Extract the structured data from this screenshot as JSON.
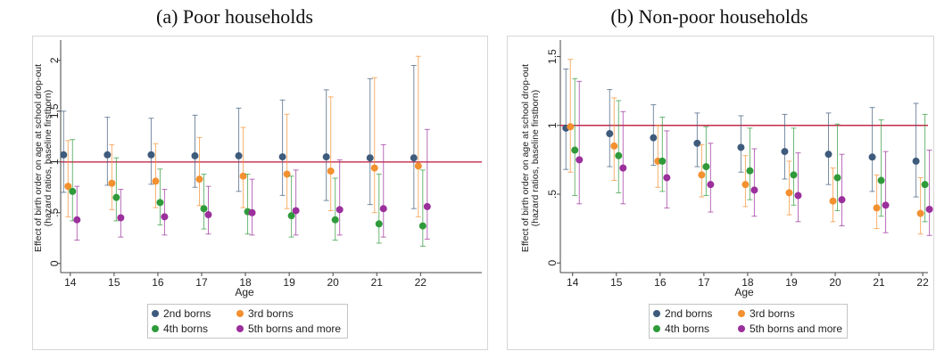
{
  "chart_data": [
    {
      "type": "scatter",
      "title": "(a) Poor households",
      "xlabel": "Age",
      "ylabel": [
        "Effect of birth order on age at school drop-out",
        "(hazard ratios, baseline firstborn)"
      ],
      "x": [
        14,
        15,
        16,
        17,
        18,
        19,
        20,
        21,
        22
      ],
      "yticks": [
        0,
        0.5,
        1,
        1.5,
        2
      ],
      "ytick_labels": [
        "0",
        ".5",
        "1",
        "1.5",
        "2"
      ],
      "xlim": [
        13.78,
        23.4
      ],
      "ylim": [
        -0.09,
        2.2
      ],
      "grid": false,
      "legend": "bottom",
      "reference_line": {
        "y": 1,
        "color": "#c52a4a"
      },
      "series": [
        {
          "name": "2nd borns",
          "color": "#3e5b7c",
          "values": [
            1.07,
            1.07,
            1.07,
            1.06,
            1.06,
            1.05,
            1.05,
            1.04,
            1.04
          ],
          "ci_low": [
            0.7,
            0.77,
            0.78,
            0.75,
            0.71,
            0.67,
            0.62,
            0.58,
            0.54
          ],
          "ci_high": [
            1.5,
            1.44,
            1.43,
            1.46,
            1.53,
            1.61,
            1.71,
            1.82,
            1.95
          ]
        },
        {
          "name": "3rd borns",
          "color": "#f39030",
          "values": [
            0.76,
            0.79,
            0.81,
            0.83,
            0.86,
            0.88,
            0.91,
            0.94,
            0.96
          ],
          "ci_low": [
            0.46,
            0.53,
            0.55,
            0.57,
            0.55,
            0.54,
            0.52,
            0.5,
            0.46
          ],
          "ci_high": [
            1.21,
            1.17,
            1.18,
            1.24,
            1.34,
            1.47,
            1.64,
            1.83,
            2.04
          ]
        },
        {
          "name": "4th borns",
          "color": "#2f9a3a",
          "values": [
            0.71,
            0.65,
            0.6,
            0.54,
            0.51,
            0.47,
            0.43,
            0.39,
            0.37
          ],
          "ci_low": [
            0.42,
            0.42,
            0.38,
            0.34,
            0.29,
            0.26,
            0.23,
            0.2,
            0.17
          ],
          "ci_high": [
            1.22,
            1.04,
            0.93,
            0.88,
            0.88,
            0.86,
            0.84,
            0.88,
            0.92
          ]
        },
        {
          "name": "5th borns and more",
          "color": "#9b2f9b",
          "values": [
            0.43,
            0.45,
            0.46,
            0.48,
            0.5,
            0.52,
            0.53,
            0.54,
            0.56
          ],
          "ci_low": [
            0.23,
            0.26,
            0.28,
            0.29,
            0.28,
            0.28,
            0.28,
            0.26,
            0.24
          ],
          "ci_high": [
            0.76,
            0.73,
            0.73,
            0.76,
            0.83,
            0.92,
            1.02,
            1.17,
            1.32
          ]
        }
      ]
    },
    {
      "type": "scatter",
      "title": "(b) Non-poor households",
      "xlabel": "Age",
      "ylabel": [
        "Effect of birth order on age at school drop-out",
        "(hazard ratios, baseline firstborn)"
      ],
      "x": [
        14,
        15,
        16,
        17,
        18,
        19,
        20,
        21,
        22
      ],
      "yticks": [
        0,
        0.5,
        1,
        1.5
      ],
      "ytick_labels": [
        "0",
        ".5",
        "1",
        "1.5"
      ],
      "xlim": [
        13.72,
        22.12
      ],
      "ylim": [
        -0.07,
        1.62
      ],
      "grid": false,
      "legend": "bottom",
      "reference_line": {
        "y": 1,
        "color": "#c52a4a"
      },
      "series": [
        {
          "name": "2nd borns",
          "color": "#3e5b7c",
          "values": [
            0.98,
            0.94,
            0.91,
            0.87,
            0.84,
            0.81,
            0.79,
            0.77,
            0.74
          ],
          "ci_low": [
            0.68,
            0.7,
            0.71,
            0.7,
            0.66,
            0.61,
            0.57,
            0.52,
            0.48
          ],
          "ci_high": [
            1.41,
            1.26,
            1.15,
            1.09,
            1.07,
            1.08,
            1.09,
            1.13,
            1.16
          ]
        },
        {
          "name": "3rd borns",
          "color": "#f39030",
          "values": [
            0.99,
            0.85,
            0.74,
            0.64,
            0.57,
            0.51,
            0.45,
            0.4,
            0.36
          ],
          "ci_low": [
            0.66,
            0.6,
            0.55,
            0.48,
            0.41,
            0.35,
            0.3,
            0.25,
            0.21
          ],
          "ci_high": [
            1.48,
            1.2,
            1.0,
            0.86,
            0.78,
            0.74,
            0.69,
            0.64,
            0.62
          ]
        },
        {
          "name": "4th borns",
          "color": "#2f9a3a",
          "values": [
            0.82,
            0.78,
            0.74,
            0.7,
            0.67,
            0.64,
            0.62,
            0.6,
            0.57
          ],
          "ci_low": [
            0.49,
            0.51,
            0.52,
            0.49,
            0.46,
            0.42,
            0.38,
            0.34,
            0.3
          ],
          "ci_high": [
            1.34,
            1.18,
            1.06,
            0.99,
            0.98,
            0.98,
            1.01,
            1.04,
            1.08
          ]
        },
        {
          "name": "5th borns and more",
          "color": "#9b2f9b",
          "values": [
            0.75,
            0.69,
            0.62,
            0.57,
            0.53,
            0.49,
            0.46,
            0.42,
            0.39
          ],
          "ci_low": [
            0.43,
            0.43,
            0.4,
            0.37,
            0.34,
            0.3,
            0.27,
            0.22,
            0.2
          ],
          "ci_high": [
            1.32,
            1.1,
            0.96,
            0.87,
            0.83,
            0.8,
            0.79,
            0.81,
            0.82
          ]
        }
      ]
    }
  ]
}
